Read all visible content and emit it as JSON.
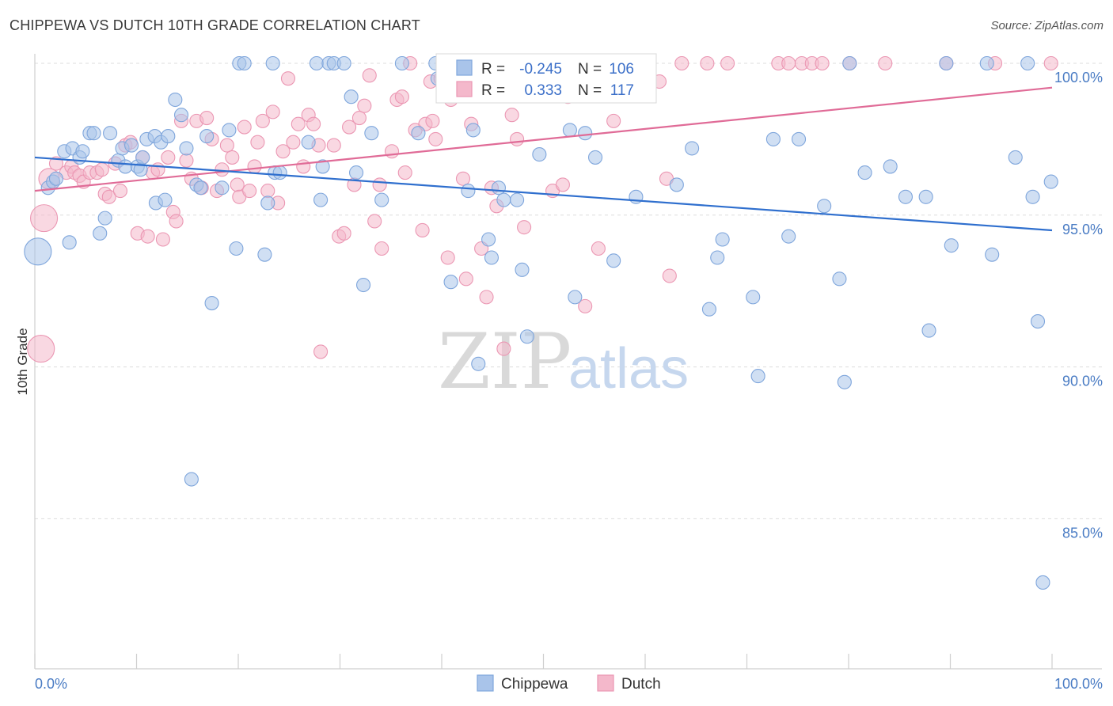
{
  "header": {
    "title": "CHIPPEWA VS DUTCH 10TH GRADE CORRELATION CHART",
    "source": "Source: ZipAtlas.com"
  },
  "watermark": {
    "zip": "ZIP",
    "atlas": "atlas"
  },
  "colors": {
    "chippewa_fill": "#a9c4ea",
    "chippewa_stroke": "#7fa6dc",
    "chippewa_line": "#2f6fce",
    "dutch_fill": "#f4b8cb",
    "dutch_stroke": "#eb97b3",
    "dutch_line": "#e06b97",
    "tick_label": "#4a7cc4",
    "grid": "#dddddd"
  },
  "stats_legend": {
    "rows": [
      {
        "r_label": "R =",
        "r_value": "-0.245",
        "n_label": "N =",
        "n_value": "106"
      },
      {
        "r_label": "R =",
        "r_value": "0.333",
        "n_label": "N =",
        "n_value": "117"
      }
    ]
  },
  "bottom_legend": {
    "items": [
      "Chippewa",
      "Dutch"
    ]
  },
  "chart_data": {
    "type": "scatter",
    "title": "CHIPPEWA VS DUTCH 10TH GRADE CORRELATION CHART",
    "xlabel": "",
    "ylabel": "10th Grade",
    "xlim": [
      0,
      100
    ],
    "ylim": [
      80.5,
      100.8
    ],
    "x_tick_labels": [
      "0.0%",
      "100.0%"
    ],
    "y_ticks": [
      85,
      90,
      95,
      100
    ],
    "y_tick_labels": [
      "85.0%",
      "90.0%",
      "95.0%",
      "100.0%"
    ],
    "grid": true,
    "legend_position": "bottom-center",
    "series": [
      {
        "name": "Chippewa",
        "r": -0.245,
        "n": 106,
        "trend": {
          "x": [
            0,
            100
          ],
          "y": [
            96.9,
            94.5
          ]
        },
        "points": [
          [
            0.3,
            93.8,
            "xl"
          ],
          [
            1.3,
            95.9
          ],
          [
            1.8,
            96.1
          ],
          [
            2.1,
            96.2
          ],
          [
            2.9,
            97.1
          ],
          [
            3.4,
            94.1
          ],
          [
            3.7,
            97.2
          ],
          [
            4.4,
            96.9
          ],
          [
            4.7,
            97.1
          ],
          [
            5.4,
            97.7
          ],
          [
            5.8,
            97.7
          ],
          [
            6.4,
            94.4
          ],
          [
            6.9,
            94.9
          ],
          [
            7.4,
            97.7
          ],
          [
            8.2,
            96.8
          ],
          [
            8.6,
            97.2
          ],
          [
            8.9,
            96.6
          ],
          [
            9.5,
            97.3
          ],
          [
            10.1,
            96.6
          ],
          [
            10.4,
            96.5
          ],
          [
            10.6,
            96.9
          ],
          [
            11.0,
            97.5
          ],
          [
            11.8,
            97.6
          ],
          [
            11.9,
            95.4
          ],
          [
            12.4,
            97.4
          ],
          [
            12.8,
            95.5
          ],
          [
            13.1,
            97.6
          ],
          [
            13.8,
            98.8
          ],
          [
            14.4,
            98.3
          ],
          [
            14.9,
            97.2
          ],
          [
            15.4,
            86.3
          ],
          [
            15.9,
            96.0
          ],
          [
            16.3,
            95.9
          ],
          [
            16.9,
            97.6
          ],
          [
            17.4,
            92.1
          ],
          [
            18.4,
            95.9
          ],
          [
            19.1,
            97.8
          ],
          [
            19.8,
            93.9
          ],
          [
            20.1,
            100
          ],
          [
            20.6,
            100
          ],
          [
            22.6,
            93.7
          ],
          [
            22.9,
            95.4
          ],
          [
            23.4,
            100
          ],
          [
            23.6,
            96.4
          ],
          [
            24.1,
            96.4
          ],
          [
            26.9,
            97.4
          ],
          [
            27.7,
            100
          ],
          [
            28.1,
            95.5
          ],
          [
            28.3,
            96.6
          ],
          [
            28.9,
            100
          ],
          [
            29.4,
            100
          ],
          [
            30.4,
            100
          ],
          [
            31.1,
            98.9
          ],
          [
            31.6,
            96.4
          ],
          [
            32.3,
            92.7
          ],
          [
            33.1,
            97.7
          ],
          [
            34.1,
            95.5
          ],
          [
            36.1,
            100
          ],
          [
            37.7,
            97.7
          ],
          [
            39.4,
            100
          ],
          [
            39.6,
            99.5
          ],
          [
            40.9,
            92.8
          ],
          [
            41.6,
            100
          ],
          [
            42.6,
            95.8
          ],
          [
            43.1,
            97.8
          ],
          [
            43.6,
            90.1
          ],
          [
            44.6,
            94.2
          ],
          [
            44.9,
            93.6
          ],
          [
            45.6,
            95.9
          ],
          [
            46.1,
            95.5
          ],
          [
            47.4,
            95.5
          ],
          [
            47.9,
            93.2
          ],
          [
            48.4,
            91.0
          ],
          [
            49.6,
            97.0
          ],
          [
            50.6,
            99.9
          ],
          [
            52.6,
            97.8
          ],
          [
            53.1,
            92.3
          ],
          [
            54.1,
            97.7
          ],
          [
            55.1,
            96.9
          ],
          [
            56.9,
            93.5
          ],
          [
            59.1,
            95.6
          ],
          [
            63.1,
            96.0
          ],
          [
            64.6,
            97.2
          ],
          [
            66.3,
            91.9
          ],
          [
            67.1,
            93.6
          ],
          [
            67.6,
            94.2
          ],
          [
            70.6,
            92.3
          ],
          [
            71.1,
            89.7
          ],
          [
            72.6,
            97.5
          ],
          [
            74.1,
            94.3
          ],
          [
            75.1,
            97.5
          ],
          [
            77.6,
            95.3
          ],
          [
            79.1,
            92.9
          ],
          [
            79.6,
            89.5
          ],
          [
            80.1,
            100
          ],
          [
            81.6,
            96.4
          ],
          [
            84.1,
            96.6
          ],
          [
            85.6,
            95.6
          ],
          [
            87.6,
            95.6
          ],
          [
            87.9,
            91.2
          ],
          [
            89.6,
            100
          ],
          [
            90.1,
            94.0
          ],
          [
            93.6,
            100
          ],
          [
            94.1,
            93.7
          ],
          [
            96.4,
            96.9
          ],
          [
            97.6,
            100
          ],
          [
            98.1,
            95.6
          ],
          [
            98.6,
            91.5
          ],
          [
            99.1,
            82.9
          ],
          [
            99.9,
            96.1
          ]
        ]
      },
      {
        "name": "Dutch",
        "r": 0.333,
        "n": 117,
        "trend": {
          "x": [
            0,
            100
          ],
          "y": [
            95.8,
            99.2
          ]
        },
        "points": [
          [
            0.6,
            90.6,
            "xl"
          ],
          [
            0.9,
            94.9,
            "xl"
          ],
          [
            1.4,
            96.2,
            "lg"
          ],
          [
            2.1,
            96.7
          ],
          [
            3.1,
            96.4
          ],
          [
            3.6,
            96.6
          ],
          [
            3.9,
            96.4
          ],
          [
            4.4,
            96.3
          ],
          [
            4.8,
            96.1
          ],
          [
            5.4,
            96.4
          ],
          [
            6.1,
            96.4
          ],
          [
            6.6,
            96.5
          ],
          [
            6.9,
            95.7
          ],
          [
            7.3,
            95.6
          ],
          [
            7.9,
            96.7
          ],
          [
            8.4,
            95.8
          ],
          [
            8.9,
            97.3
          ],
          [
            9.4,
            97.4
          ],
          [
            10.1,
            94.4
          ],
          [
            10.6,
            96.9
          ],
          [
            11.1,
            94.3
          ],
          [
            11.6,
            96.4
          ],
          [
            12.1,
            96.5
          ],
          [
            12.6,
            94.2
          ],
          [
            13.1,
            96.9
          ],
          [
            13.6,
            95.1
          ],
          [
            13.9,
            94.8
          ],
          [
            14.4,
            98.1
          ],
          [
            14.9,
            96.8
          ],
          [
            15.4,
            96.2
          ],
          [
            15.9,
            98.1
          ],
          [
            16.4,
            95.9
          ],
          [
            16.9,
            98.2
          ],
          [
            17.4,
            97.5
          ],
          [
            17.9,
            95.8
          ],
          [
            18.4,
            96.5
          ],
          [
            18.9,
            97.3
          ],
          [
            19.4,
            96.9
          ],
          [
            19.9,
            96.0
          ],
          [
            20.1,
            95.6
          ],
          [
            20.6,
            97.9
          ],
          [
            21.1,
            95.8
          ],
          [
            21.6,
            96.6
          ],
          [
            21.9,
            97.4
          ],
          [
            22.4,
            98.1
          ],
          [
            22.9,
            95.8
          ],
          [
            23.4,
            98.4
          ],
          [
            23.9,
            95.4
          ],
          [
            24.4,
            97.1
          ],
          [
            24.9,
            99.5
          ],
          [
            25.4,
            97.4
          ],
          [
            25.9,
            98.0
          ],
          [
            26.4,
            96.6
          ],
          [
            26.9,
            98.3
          ],
          [
            27.4,
            98.0
          ],
          [
            27.9,
            97.3
          ],
          [
            28.1,
            90.5
          ],
          [
            29.4,
            97.3
          ],
          [
            29.9,
            94.3
          ],
          [
            30.4,
            94.4
          ],
          [
            30.9,
            97.9
          ],
          [
            31.4,
            96.0
          ],
          [
            31.9,
            98.2
          ],
          [
            32.4,
            98.6
          ],
          [
            32.9,
            99.6
          ],
          [
            33.4,
            94.8
          ],
          [
            33.9,
            96.0
          ],
          [
            34.1,
            93.9
          ],
          [
            35.1,
            97.1
          ],
          [
            35.6,
            98.8
          ],
          [
            36.1,
            98.9
          ],
          [
            36.4,
            96.4
          ],
          [
            36.9,
            100
          ],
          [
            37.4,
            97.8
          ],
          [
            38.1,
            94.5
          ],
          [
            38.4,
            98.0
          ],
          [
            38.9,
            99.4
          ],
          [
            39.1,
            98.1
          ],
          [
            39.4,
            97.5
          ],
          [
            39.9,
            99.5
          ],
          [
            40.6,
            93.6
          ],
          [
            40.9,
            98.8
          ],
          [
            42.1,
            96.2
          ],
          [
            42.4,
            92.9
          ],
          [
            42.9,
            98.0
          ],
          [
            43.9,
            93.9
          ],
          [
            44.4,
            92.3
          ],
          [
            44.9,
            95.9
          ],
          [
            45.4,
            95.3
          ],
          [
            46.1,
            90.6
          ],
          [
            46.9,
            98.3
          ],
          [
            47.4,
            97.5
          ],
          [
            48.1,
            94.6
          ],
          [
            49.1,
            100
          ],
          [
            50.9,
            95.8
          ],
          [
            51.9,
            96.0
          ],
          [
            52.4,
            98.9
          ],
          [
            54.1,
            92.0
          ],
          [
            55.4,
            93.9
          ],
          [
            56.9,
            98.1
          ],
          [
            58.1,
            99.0
          ],
          [
            58.6,
            99.0
          ],
          [
            60.1,
            100
          ],
          [
            61.4,
            99.4
          ],
          [
            62.1,
            96.2
          ],
          [
            62.4,
            93.0
          ],
          [
            63.6,
            100
          ],
          [
            66.1,
            100
          ],
          [
            68.1,
            100
          ],
          [
            73.1,
            100
          ],
          [
            74.1,
            100
          ],
          [
            75.4,
            100
          ],
          [
            76.4,
            100
          ],
          [
            77.4,
            100
          ],
          [
            80.1,
            100
          ],
          [
            83.6,
            100
          ],
          [
            89.6,
            100
          ],
          [
            94.4,
            100
          ],
          [
            99.9,
            100
          ]
        ]
      }
    ]
  }
}
